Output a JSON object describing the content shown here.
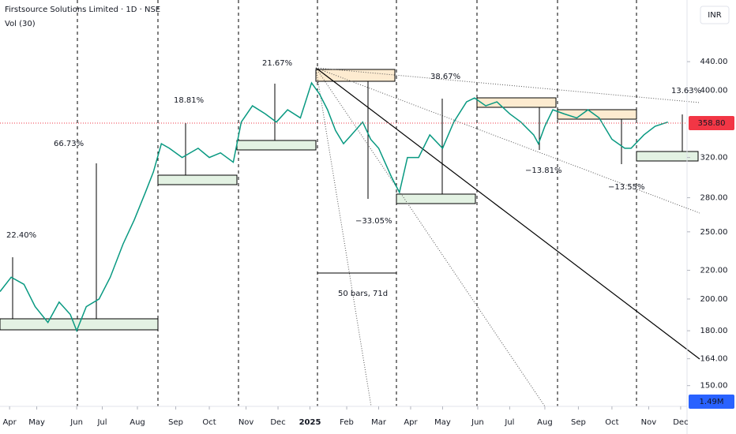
{
  "chart_data": {
    "type": "line",
    "title": "Firstsource Solutions Limited · 1D · NSE",
    "volume_label": "Vol (30)",
    "volume_last": "1.49M",
    "currency": "INR",
    "log_scale": true,
    "color": "#089981",
    "x": [
      0,
      7,
      15,
      22,
      30,
      37,
      44,
      48,
      54,
      62,
      69,
      77,
      84,
      91,
      96,
      101,
      106,
      114,
      124,
      131,
      138,
      146,
      151,
      158,
      166,
      173,
      180,
      188,
      195,
      200,
      205,
      210,
      215,
      220,
      227,
      232,
      237,
      245,
      250,
      255,
      262,
      269,
      277,
      284,
      292,
      297,
      304,
      311,
      319,
      326,
      334,
      337,
      341,
      346,
      353,
      361,
      368,
      375,
      383,
      391,
      395,
      403,
      410,
      418
    ],
    "values": [
      205,
      215,
      210,
      195,
      185,
      198,
      190,
      180,
      195,
      200,
      215,
      240,
      260,
      285,
      305,
      335,
      330,
      320,
      330,
      320,
      325,
      315,
      360,
      380,
      370,
      360,
      375,
      365,
      410,
      395,
      375,
      350,
      335,
      345,
      360,
      340,
      330,
      300,
      285,
      320,
      320,
      345,
      330,
      360,
      385,
      390,
      380,
      385,
      370,
      360,
      345,
      335,
      355,
      375,
      370,
      365,
      375,
      365,
      340,
      330,
      330,
      345,
      355,
      360
    ],
    "xlim": [
      0,
      430
    ],
    "xticks": [
      {
        "value": 6,
        "label": "Apr"
      },
      {
        "value": 23,
        "label": "May"
      },
      {
        "value": 48,
        "label": "Jun"
      },
      {
        "value": 64,
        "label": "Jul"
      },
      {
        "value": 86,
        "label": "Aug"
      },
      {
        "value": 110,
        "label": "Sep"
      },
      {
        "value": 131,
        "label": "Oct"
      },
      {
        "value": 154,
        "label": "Nov"
      },
      {
        "value": 174,
        "label": "Dec"
      },
      {
        "value": 194,
        "label": "2025"
      },
      {
        "value": 217,
        "label": "Feb"
      },
      {
        "value": 237,
        "label": "Mar"
      },
      {
        "value": 257,
        "label": "Apr"
      },
      {
        "value": 277,
        "label": "May"
      },
      {
        "value": 299,
        "label": "Jun"
      },
      {
        "value": 319,
        "label": "Jul"
      },
      {
        "value": 341,
        "label": "Aug"
      },
      {
        "value": 362,
        "label": "Sep"
      },
      {
        "value": 383,
        "label": "Oct"
      },
      {
        "value": 406,
        "label": "Nov"
      },
      {
        "value": 426,
        "label": "Dec"
      }
    ],
    "ylim": [
      140,
      540
    ],
    "yticks": [
      {
        "value": 150,
        "label": "150.00"
      },
      {
        "value": 164,
        "label": "164.00"
      },
      {
        "value": 180,
        "label": "180.00"
      },
      {
        "value": 200,
        "label": "200.00"
      },
      {
        "value": 220,
        "label": "220.00"
      },
      {
        "value": 250,
        "label": "250.00"
      },
      {
        "value": 280,
        "label": "280.00"
      },
      {
        "value": 320,
        "label": "320.00"
      },
      {
        "value": 400,
        "label": "400.00"
      },
      {
        "value": 440,
        "label": "440.00"
      }
    ],
    "last_price": {
      "value": 358.8,
      "label": "358.80",
      "color": "#f23645"
    },
    "annotations": [
      "22.40%",
      "66.73%",
      "18.81%",
      "21.67%",
      "38.67%",
      "−33.05%",
      "−13.81%",
      "−13.55%",
      "13.63%",
      "50 bars, 71d"
    ]
  }
}
